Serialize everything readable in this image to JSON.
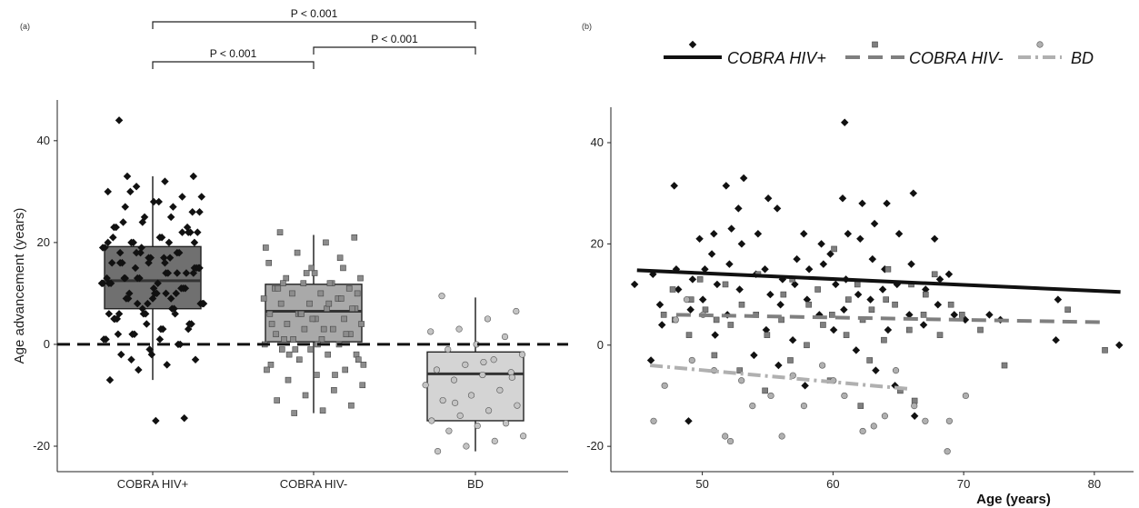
{
  "chart_data": [
    {
      "panel_label": "(a)",
      "type": "box",
      "ylabel": "Age advancement (years)",
      "ylim": [
        -25,
        48
      ],
      "yticks": [
        -20,
        0,
        20,
        40
      ],
      "reference_line": 0,
      "categories": [
        "COBRA HIV+",
        "COBRA HIV-",
        "BD"
      ],
      "colors": {
        "COBRA HIV+": "#707070",
        "COBRA HIV-": "#a9a9a9",
        "BD": "#d4d4d4"
      },
      "boxes": [
        {
          "name": "COBRA HIV+",
          "q1": 7,
          "median": 12.5,
          "q3": 19.2,
          "whisker_low": -7,
          "whisker_high": 33
        },
        {
          "name": "COBRA HIV-",
          "q1": 0.5,
          "median": 6.5,
          "q3": 11.8,
          "whisker_low": -13.5,
          "whisker_high": 21.5
        },
        {
          "name": "BD",
          "q1": -15,
          "median": -5.8,
          "q3": -1.5,
          "whisker_low": -21,
          "whisker_high": 9.2
        }
      ],
      "significance": [
        {
          "from": "COBRA HIV+",
          "to": "BD",
          "label": "P < 0.001"
        },
        {
          "from": "COBRA HIV+",
          "to": "COBRA HIV-",
          "label": "P < 0.001"
        },
        {
          "from": "COBRA HIV-",
          "to": "BD",
          "label": "P < 0.001"
        }
      ],
      "points": {
        "COBRA HIV+": [
          44,
          33,
          32,
          31,
          30,
          29,
          28,
          27,
          26,
          25,
          24,
          23,
          22,
          21,
          20,
          19,
          18,
          17,
          16,
          15,
          14,
          13,
          12,
          11,
          10,
          9,
          8,
          7,
          6,
          5,
          4,
          3,
          2,
          1,
          0,
          -1,
          -2,
          -3,
          -4,
          -5,
          -7,
          -14.5,
          -15,
          33,
          29,
          27,
          25,
          23,
          22,
          21,
          20,
          19,
          18,
          17,
          16,
          15,
          14,
          13,
          12,
          11,
          10,
          9,
          8,
          7,
          6,
          5,
          4,
          3,
          2,
          1,
          0,
          -2,
          24,
          22,
          20,
          18,
          16,
          14,
          12,
          10,
          8,
          6,
          4,
          2,
          26,
          17,
          15,
          13,
          11,
          9,
          13,
          15,
          17,
          19,
          21,
          23,
          28,
          30,
          12,
          10,
          8,
          6,
          14,
          16,
          18,
          20,
          22,
          11,
          13,
          15,
          9,
          7,
          5,
          3,
          1,
          -3,
          12,
          14,
          16,
          18,
          20,
          10,
          8,
          6
        ],
        "COBRA HIV-": [
          22,
          21,
          20,
          18,
          16,
          15,
          14,
          13,
          13,
          12,
          12,
          11,
          11,
          10,
          10,
          9,
          9,
          8,
          8,
          7,
          7,
          6,
          6,
          5,
          5,
          4,
          4,
          3,
          3,
          2,
          2,
          1,
          1,
          0,
          0,
          -1,
          -1,
          -2,
          -2,
          -3,
          -4,
          -5,
          -6,
          -7,
          -8,
          -9,
          -10,
          -11,
          -12,
          -13,
          -13.5,
          19,
          17,
          15,
          12,
          10,
          8,
          6,
          4,
          2,
          0,
          -2,
          -4,
          -6,
          14,
          11,
          7,
          3,
          -1,
          -5,
          9,
          5,
          1,
          -3,
          12,
          6
        ],
        "BD": [
          9.5,
          6.5,
          5,
          3,
          2.5,
          1.5,
          0,
          -1,
          -2,
          -3,
          -4,
          -5,
          -5.5,
          -6,
          -7,
          -8,
          -9,
          -10,
          -11,
          -12,
          -13,
          -14,
          -15,
          -15.5,
          -16,
          -17,
          -18,
          -19,
          -20,
          -21,
          -6.5,
          -3.5,
          -11.5
        ]
      }
    },
    {
      "panel_label": "(b)",
      "type": "scatter",
      "xlabel": "Age (years)",
      "xlim": [
        43,
        83
      ],
      "ylim": [
        -25,
        47
      ],
      "xticks": [
        50,
        60,
        70,
        80
      ],
      "yticks": [
        -20,
        0,
        20,
        40
      ],
      "legend_position": "top",
      "series": [
        {
          "name": "COBRA HIV+",
          "marker": "diamond",
          "color": "#111111",
          "line_style": "solid",
          "trend": {
            "x": [
              45,
              82
            ],
            "y": [
              14.8,
              10.5
            ]
          },
          "points": [
            [
              45,
              12
            ],
            [
              46,
              14
            ],
            [
              46,
              -3
            ],
            [
              47,
              4
            ],
            [
              47,
              8
            ],
            [
              48,
              11
            ],
            [
              48,
              15
            ],
            [
              48,
              31.5
            ],
            [
              49,
              13
            ],
            [
              49,
              7
            ],
            [
              49,
              -15
            ],
            [
              50,
              21
            ],
            [
              50,
              15
            ],
            [
              50,
              9
            ],
            [
              51,
              22
            ],
            [
              51,
              18
            ],
            [
              51,
              12
            ],
            [
              51,
              2
            ],
            [
              52,
              31.5
            ],
            [
              52,
              23
            ],
            [
              52,
              16
            ],
            [
              52,
              6
            ],
            [
              53,
              27
            ],
            [
              53,
              33
            ],
            [
              53,
              20
            ],
            [
              53,
              11
            ],
            [
              54,
              22
            ],
            [
              54,
              14
            ],
            [
              54,
              -2
            ],
            [
              55,
              15
            ],
            [
              55,
              10
            ],
            [
              55,
              29
            ],
            [
              55,
              3
            ],
            [
              56,
              27
            ],
            [
              56,
              13
            ],
            [
              56,
              8
            ],
            [
              56,
              -4
            ],
            [
              57,
              17
            ],
            [
              57,
              12
            ],
            [
              57,
              1
            ],
            [
              58,
              22
            ],
            [
              58,
              15
            ],
            [
              58,
              9
            ],
            [
              58,
              -8
            ],
            [
              59,
              16
            ],
            [
              59,
              20
            ],
            [
              59,
              6
            ],
            [
              60,
              18
            ],
            [
              60,
              12
            ],
            [
              60,
              3
            ],
            [
              61,
              44
            ],
            [
              61,
              29
            ],
            [
              61,
              22
            ],
            [
              61,
              13
            ],
            [
              61,
              7
            ],
            [
              62,
              28
            ],
            [
              62,
              21
            ],
            [
              62,
              10
            ],
            [
              62,
              -1
            ],
            [
              63,
              24
            ],
            [
              63,
              17
            ],
            [
              63,
              9
            ],
            [
              63,
              -5
            ],
            [
              64,
              28
            ],
            [
              64,
              15
            ],
            [
              64,
              11
            ],
            [
              64,
              3
            ],
            [
              65,
              22
            ],
            [
              65,
              12
            ],
            [
              65,
              -8
            ],
            [
              66,
              30
            ],
            [
              66,
              16
            ],
            [
              66,
              6
            ],
            [
              66,
              -14
            ],
            [
              67,
              11
            ],
            [
              67,
              4
            ],
            [
              68,
              21
            ],
            [
              68,
              13
            ],
            [
              68,
              8
            ],
            [
              69,
              14
            ],
            [
              69,
              6
            ],
            [
              70,
              5
            ],
            [
              72,
              6
            ],
            [
              73,
              5
            ],
            [
              77,
              9
            ],
            [
              77,
              1
            ],
            [
              82,
              0
            ]
          ]
        },
        {
          "name": "COBRA HIV-",
          "marker": "square",
          "color": "#7f7f7f",
          "line_style": "dashed",
          "trend": {
            "x": [
              48,
              81
            ],
            "y": [
              6,
              4.5
            ]
          },
          "points": [
            [
              47,
              6
            ],
            [
              48,
              5
            ],
            [
              48,
              11
            ],
            [
              49,
              9
            ],
            [
              49,
              2
            ],
            [
              50,
              13
            ],
            [
              50,
              7
            ],
            [
              51,
              5
            ],
            [
              51,
              -2
            ],
            [
              52,
              12
            ],
            [
              52,
              4
            ],
            [
              53,
              8
            ],
            [
              53,
              -5
            ],
            [
              54,
              14
            ],
            [
              54,
              6
            ],
            [
              55,
              2
            ],
            [
              55,
              -9
            ],
            [
              56,
              10
            ],
            [
              56,
              5
            ],
            [
              57,
              13
            ],
            [
              57,
              -3
            ],
            [
              58,
              8
            ],
            [
              58,
              0
            ],
            [
              59,
              11
            ],
            [
              59,
              4
            ],
            [
              60,
              19
            ],
            [
              60,
              6
            ],
            [
              60,
              -7
            ],
            [
              61,
              9
            ],
            [
              61,
              2
            ],
            [
              62,
              12
            ],
            [
              62,
              5
            ],
            [
              62,
              -12
            ],
            [
              63,
              7
            ],
            [
              63,
              -3
            ],
            [
              64,
              15
            ],
            [
              64,
              9
            ],
            [
              64,
              1
            ],
            [
              65,
              8
            ],
            [
              65,
              -9
            ],
            [
              66,
              12
            ],
            [
              66,
              3
            ],
            [
              66,
              -11
            ],
            [
              67,
              10
            ],
            [
              67,
              6
            ],
            [
              68,
              14
            ],
            [
              68,
              2
            ],
            [
              69,
              8
            ],
            [
              70,
              6
            ],
            [
              71,
              3
            ],
            [
              73,
              -4
            ],
            [
              78,
              7
            ],
            [
              81,
              -1
            ]
          ]
        },
        {
          "name": "BD",
          "marker": "circle",
          "color": "#b0b0b0",
          "line_style": "dotdash",
          "trend": {
            "x": [
              46,
              66
            ],
            "y": [
              -4,
              -8.7
            ]
          },
          "points": [
            [
              46,
              -15
            ],
            [
              47,
              -8
            ],
            [
              48,
              5
            ],
            [
              49,
              9
            ],
            [
              49,
              -3
            ],
            [
              50,
              6
            ],
            [
              51,
              -5
            ],
            [
              52,
              -18
            ],
            [
              52,
              -19
            ],
            [
              53,
              -7
            ],
            [
              54,
              -12
            ],
            [
              55,
              -10
            ],
            [
              56,
              -18
            ],
            [
              57,
              -6
            ],
            [
              58,
              -12
            ],
            [
              59,
              -4
            ],
            [
              60,
              -7
            ],
            [
              61,
              -10
            ],
            [
              62,
              -17
            ],
            [
              63,
              -16
            ],
            [
              64,
              -14
            ],
            [
              65,
              -5
            ],
            [
              66,
              -12
            ],
            [
              67,
              -15
            ],
            [
              69,
              -15
            ],
            [
              69,
              -21
            ],
            [
              70,
              -10
            ]
          ]
        }
      ]
    }
  ]
}
